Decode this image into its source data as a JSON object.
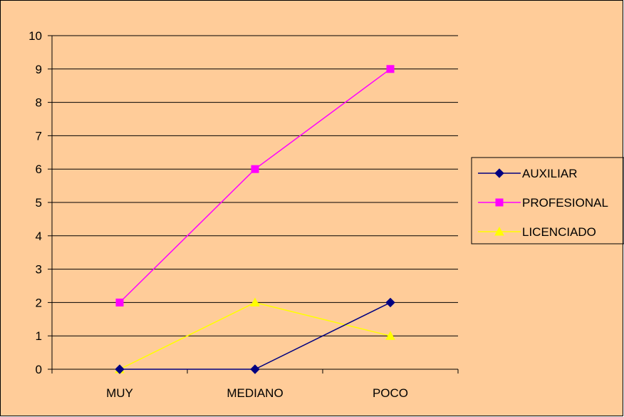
{
  "chart_data": {
    "type": "line",
    "title": "",
    "xlabel": "",
    "ylabel": "",
    "categories": [
      "MUY",
      "MEDIANO",
      "POCO"
    ],
    "ylim": [
      0,
      10
    ],
    "yticks": [
      "0",
      "1",
      "2",
      "3",
      "4",
      "5",
      "6",
      "7",
      "8",
      "9",
      "10"
    ],
    "grid": true,
    "legend_position": "right",
    "series": [
      {
        "name": "AUXILIAR",
        "values": [
          0,
          0,
          2
        ],
        "color": "#000080",
        "marker": "diamond"
      },
      {
        "name": "PROFESIONAL",
        "values": [
          2,
          6,
          9
        ],
        "color": "#ff00ff",
        "marker": "square"
      },
      {
        "name": "LICENCIADO",
        "values": [
          0,
          2,
          1
        ],
        "color": "#ffff00",
        "marker": "triangle"
      }
    ],
    "background_color": "#ffcc99",
    "gridline_color": "#000000"
  }
}
